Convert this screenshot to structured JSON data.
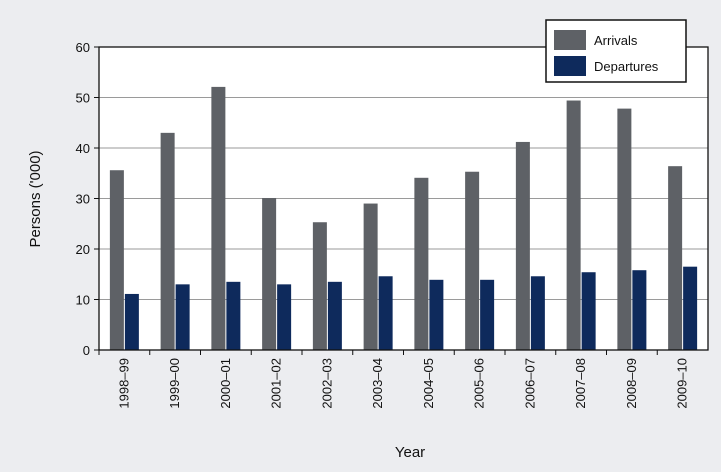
{
  "chart_data": {
    "type": "bar",
    "title": "",
    "xlabel": "Year",
    "ylabel": "Persons ('000)",
    "ylim": [
      0,
      60
    ],
    "yticks": [
      0,
      10,
      20,
      30,
      40,
      50,
      60
    ],
    "grid": true,
    "legend_position": "top-right",
    "categories": [
      "1998–99",
      "1999–00",
      "2000–01",
      "2001–02",
      "2002–03",
      "2003–04",
      "2004–05",
      "2005–06",
      "2006–07",
      "2007–08",
      "2008–09",
      "2009–10"
    ],
    "series": [
      {
        "name": "Arrivals",
        "color": "#5e6166",
        "values": [
          35.6,
          43.0,
          52.1,
          30.1,
          25.3,
          29.0,
          34.1,
          35.3,
          41.2,
          49.4,
          47.8,
          36.4
        ]
      },
      {
        "name": "Departures",
        "color": "#0e2a5c",
        "values": [
          11.1,
          13.0,
          13.5,
          13.0,
          13.5,
          14.6,
          13.9,
          13.9,
          14.6,
          15.4,
          15.8,
          16.5
        ]
      }
    ]
  }
}
